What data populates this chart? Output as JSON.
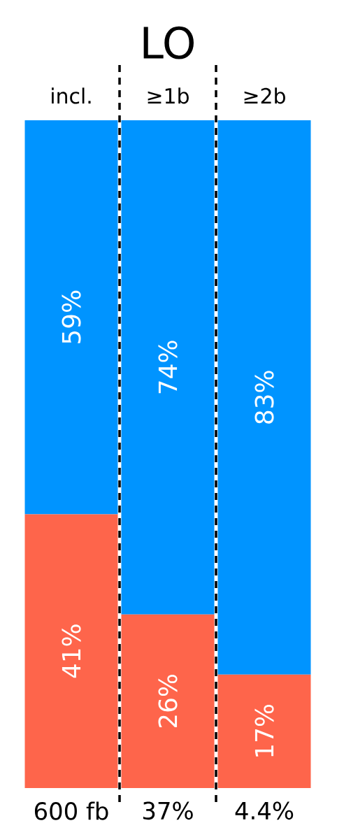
{
  "chart_data": {
    "type": "bar",
    "stacked": true,
    "title": "LO",
    "categories": [
      "incl.",
      "≥1b",
      "≥2b"
    ],
    "series": [
      {
        "color": "#fe654b",
        "values": [
          41,
          26,
          17
        ],
        "value_labels": [
          "41%",
          "26%",
          "17%"
        ]
      },
      {
        "color": "#0094ff",
        "values": [
          59,
          74,
          83
        ],
        "value_labels": [
          "59%",
          "74%",
          "83%"
        ]
      }
    ],
    "annotations": [
      "600 fb",
      "37%",
      "4.4%"
    ]
  }
}
